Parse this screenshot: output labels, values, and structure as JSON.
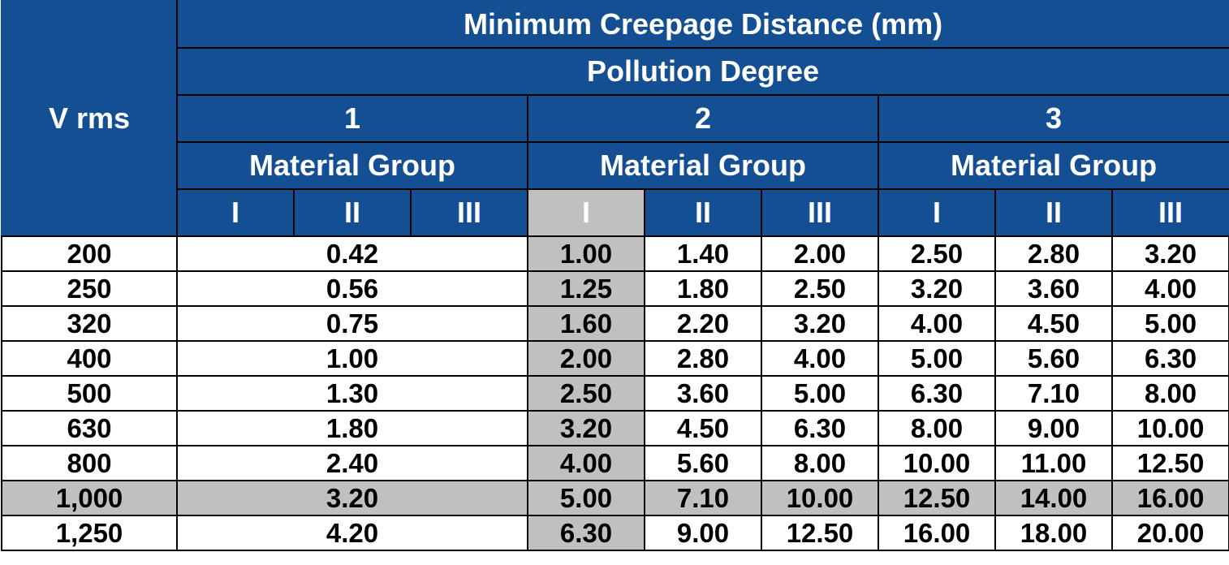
{
  "header": {
    "vrms": "V rms",
    "title": "Minimum Creepage Distance (mm)",
    "pollution": "Pollution Degree",
    "degrees": [
      "1",
      "2",
      "3"
    ],
    "material_group": "Material Group",
    "groups": [
      "I",
      "II",
      "III",
      "I",
      "II",
      "III",
      "I",
      "II",
      "III"
    ]
  },
  "colors": {
    "header_bg": "#154f93",
    "highlight": "#c0c0c0"
  },
  "rows": [
    {
      "v": "200",
      "pd1": "0.42",
      "pd2": [
        "1.00",
        "1.40",
        "2.00"
      ],
      "pd3": [
        "2.50",
        "2.80",
        "3.20"
      ]
    },
    {
      "v": "250",
      "pd1": "0.56",
      "pd2": [
        "1.25",
        "1.80",
        "2.50"
      ],
      "pd3": [
        "3.20",
        "3.60",
        "4.00"
      ]
    },
    {
      "v": "320",
      "pd1": "0.75",
      "pd2": [
        "1.60",
        "2.20",
        "3.20"
      ],
      "pd3": [
        "4.00",
        "4.50",
        "5.00"
      ]
    },
    {
      "v": "400",
      "pd1": "1.00",
      "pd2": [
        "2.00",
        "2.80",
        "4.00"
      ],
      "pd3": [
        "5.00",
        "5.60",
        "6.30"
      ]
    },
    {
      "v": "500",
      "pd1": "1.30",
      "pd2": [
        "2.50",
        "3.60",
        "5.00"
      ],
      "pd3": [
        "6.30",
        "7.10",
        "8.00"
      ]
    },
    {
      "v": "630",
      "pd1": "1.80",
      "pd2": [
        "3.20",
        "4.50",
        "6.30"
      ],
      "pd3": [
        "8.00",
        "9.00",
        "10.00"
      ]
    },
    {
      "v": "800",
      "pd1": "2.40",
      "pd2": [
        "4.00",
        "5.60",
        "8.00"
      ],
      "pd3": [
        "10.00",
        "11.00",
        "12.50"
      ]
    },
    {
      "v": "1,000",
      "pd1": "3.20",
      "pd2": [
        "5.00",
        "7.10",
        "10.00"
      ],
      "pd3": [
        "12.50",
        "14.00",
        "16.00"
      ]
    },
    {
      "v": "1,250",
      "pd1": "4.20",
      "pd2": [
        "6.30",
        "9.00",
        "12.50"
      ],
      "pd3": [
        "16.00",
        "18.00",
        "20.00"
      ]
    }
  ]
}
